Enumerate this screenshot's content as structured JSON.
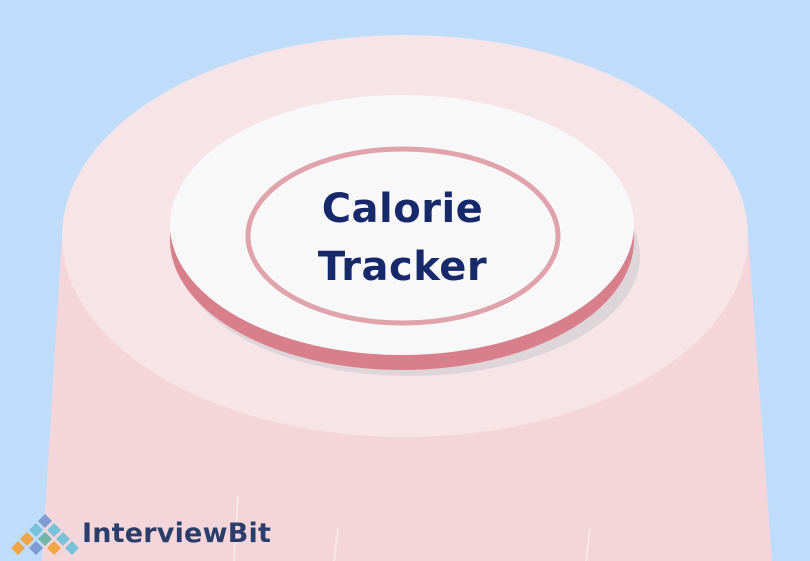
{
  "title": {
    "line1": "Calorie",
    "line2": "Tracker"
  },
  "logo": {
    "text": "InterviewBit",
    "icon": "interviewbit-diamond-logo"
  },
  "colors": {
    "background": "#bfdcfa",
    "table_side": "#f4d6da",
    "table_top": "#f7e4e7",
    "plate_face": "#f8f8f8",
    "plate_rim": "#d97f8c",
    "title_text": "#17296b"
  }
}
